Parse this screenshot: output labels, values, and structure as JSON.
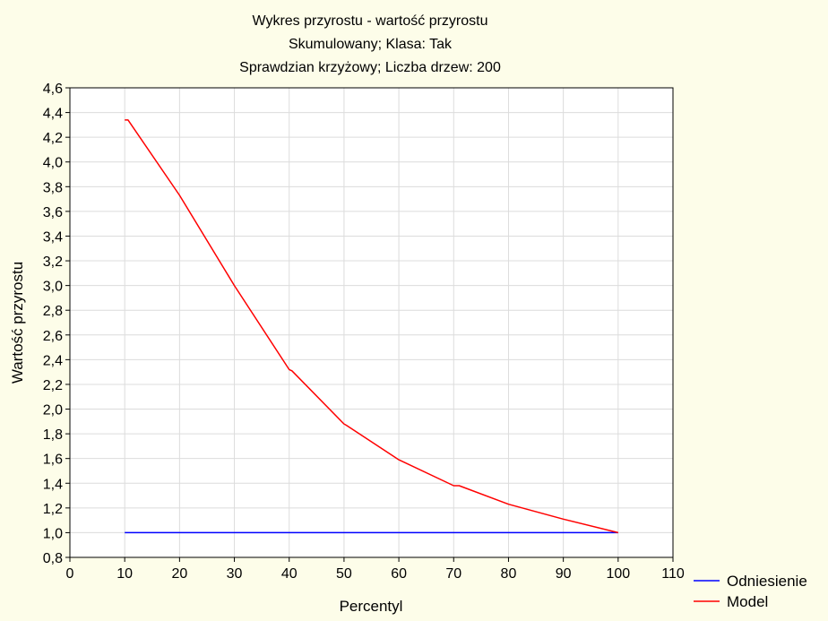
{
  "chart_data": {
    "type": "line",
    "title": "Wykres przyrostu - wartość przyrostu",
    "subtitle_lines": [
      "Skumulowany; Klasa: Tak",
      "Sprawdzian krzyżowy; Liczba drzew: 200"
    ],
    "xlabel": "Percentyl",
    "ylabel": "Wartość przyrostu",
    "xlim": [
      0,
      110
    ],
    "ylim": [
      0.8,
      4.6
    ],
    "x_ticks": [
      0,
      10,
      20,
      30,
      40,
      50,
      60,
      70,
      80,
      90,
      100,
      110
    ],
    "y_ticks": [
      "0,8",
      "1,0",
      "1,2",
      "1,4",
      "1,6",
      "1,8",
      "2,0",
      "2,2",
      "2,4",
      "2,6",
      "2,8",
      "3,0",
      "3,2",
      "3,4",
      "3,6",
      "3,8",
      "4,0",
      "4,2",
      "4,4",
      "4,6"
    ],
    "grid": true,
    "legend_position": "bottom-right",
    "series": [
      {
        "name": "Odniesienie",
        "color": "#0000ff",
        "x": [
          10,
          100
        ],
        "y": [
          1.0,
          1.0
        ]
      },
      {
        "name": "Model",
        "color": "#ff0000",
        "x": [
          10,
          10.6,
          20,
          30,
          40,
          40.5,
          50,
          50.4,
          60,
          70,
          71,
          80,
          90,
          100
        ],
        "y": [
          4.34,
          4.34,
          3.73,
          3.0,
          2.32,
          2.31,
          1.88,
          1.87,
          1.59,
          1.38,
          1.38,
          1.23,
          1.11,
          1.0
        ]
      }
    ]
  }
}
